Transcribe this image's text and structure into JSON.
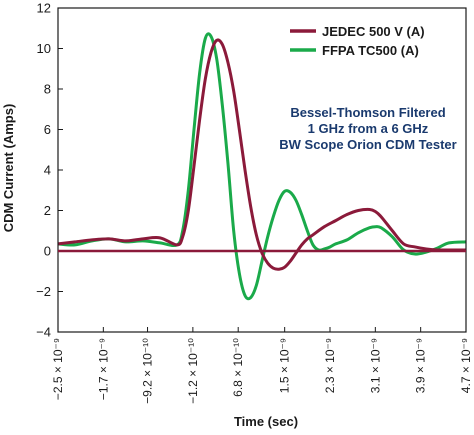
{
  "chart_data": {
    "type": "line",
    "xlabel": "Time (sec)",
    "ylabel": "CDM Current (Amps)",
    "ylim": [
      -4,
      12
    ],
    "xlim": [
      -2.5e-09,
      4.7e-09
    ],
    "yticks": [
      "−4",
      "−2",
      "0",
      "2",
      "4",
      "6",
      "8",
      "10",
      "12"
    ],
    "xticks": [
      {
        "value": -2.5e-09,
        "label": "−2.5 × 10⁻⁹"
      },
      {
        "value": -1.7e-09,
        "label": "−1.7 × 10⁻⁹"
      },
      {
        "value": -9.2e-10,
        "label": "−9.2 × 10⁻¹⁰"
      },
      {
        "value": -1.2e-10,
        "label": "−1.2 × 10⁻¹⁰"
      },
      {
        "value": 6.8e-10,
        "label": "6.8 × 10⁻¹⁰"
      },
      {
        "value": 1.5e-09,
        "label": "1.5 × 10⁻⁹"
      },
      {
        "value": 2.3e-09,
        "label": "2.3 × 10⁻⁹"
      },
      {
        "value": 3.1e-09,
        "label": "3.1 × 10⁻⁹"
      },
      {
        "value": 3.9e-09,
        "label": "3.9 × 10⁻⁹"
      },
      {
        "value": 4.7e-09,
        "label": "4.7 × 10⁻⁹"
      }
    ],
    "grid": false,
    "legend_position": "top-right",
    "annotation": [
      "Bessel-Thomson Filtered",
      "1 GHz from a 6 GHz",
      "BW Scope Orion CDM Tester"
    ],
    "series": [
      {
        "name": "JEDEC 500 V (A)",
        "color": "#8b1a3a",
        "x": [
          -2.5e-09,
          -2.2e-09,
          -1.9e-09,
          -1.6e-09,
          -1.3e-09,
          -1e-09,
          -7e-10,
          -4e-10,
          -3e-10,
          -2e-10,
          -1e-10,
          0.0,
          1e-10,
          2e-10,
          3e-10,
          4e-10,
          5e-10,
          6e-10,
          7e-10,
          8e-10,
          9e-10,
          1e-09,
          1.1e-09,
          1.2e-09,
          1.3e-09,
          1.4e-09,
          1.5e-09,
          1.6e-09,
          1.7e-09,
          1.8e-09,
          1.9e-09,
          2e-09,
          2.2e-09,
          2.4e-09,
          2.6e-09,
          2.8e-09,
          3e-09,
          3.1e-09,
          3.2e-09,
          3.4e-09,
          3.6e-09,
          3.8e-09,
          4e-09,
          4.2e-09,
          4.4e-09,
          4.7e-09
        ],
        "values": [
          0.35,
          0.45,
          0.55,
          0.6,
          0.5,
          0.6,
          0.65,
          0.3,
          0.7,
          2.0,
          4.2,
          6.5,
          8.5,
          9.8,
          10.4,
          10.2,
          9.3,
          7.9,
          6.0,
          4.0,
          2.2,
          0.8,
          -0.1,
          -0.6,
          -0.85,
          -0.9,
          -0.8,
          -0.5,
          -0.1,
          0.3,
          0.6,
          0.8,
          1.2,
          1.5,
          1.8,
          2.0,
          2.05,
          1.95,
          1.7,
          1.0,
          0.35,
          0.2,
          0.1,
          0.05,
          0.05,
          0.05
        ]
      },
      {
        "name": "FFPA TC500 (A)",
        "color": "#1aaa4a",
        "x": [
          -2.5e-09,
          -2.2e-09,
          -1.9e-09,
          -1.6e-09,
          -1.3e-09,
          -1e-09,
          -7e-10,
          -4e-10,
          -3e-10,
          -2e-10,
          -1e-10,
          0.0,
          1e-10,
          2e-10,
          3e-10,
          4e-10,
          5e-10,
          6e-10,
          7e-10,
          8e-10,
          9e-10,
          1e-09,
          1.1e-09,
          1.2e-09,
          1.3e-09,
          1.4e-09,
          1.5e-09,
          1.6e-09,
          1.7e-09,
          1.8e-09,
          1.9e-09,
          2e-09,
          2.1e-09,
          2.2e-09,
          2.3e-09,
          2.4e-09,
          2.6e-09,
          2.8e-09,
          3e-09,
          3.1e-09,
          3.2e-09,
          3.4e-09,
          3.6e-09,
          3.8e-09,
          4e-09,
          4.2e-09,
          4.4e-09,
          4.7e-09
        ],
        "values": [
          0.35,
          0.3,
          0.5,
          0.6,
          0.45,
          0.5,
          0.4,
          0.3,
          1.0,
          3.0,
          6.0,
          8.8,
          10.5,
          10.6,
          9.5,
          7.2,
          4.3,
          1.0,
          -1.1,
          -2.2,
          -2.3,
          -1.7,
          -0.5,
          0.7,
          1.7,
          2.5,
          2.95,
          2.9,
          2.5,
          1.8,
          1.0,
          0.3,
          0.05,
          0.1,
          0.2,
          0.35,
          0.55,
          0.9,
          1.15,
          1.2,
          1.15,
          0.7,
          0.05,
          -0.15,
          -0.05,
          0.15,
          0.4,
          0.45
        ]
      }
    ]
  }
}
